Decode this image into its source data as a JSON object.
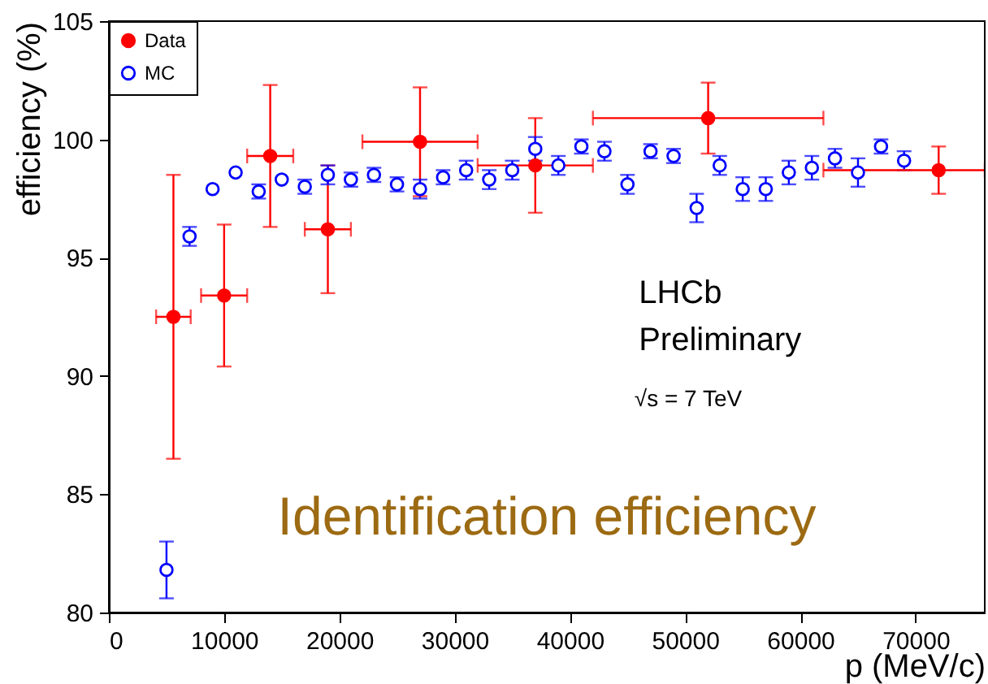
{
  "chart_data": {
    "type": "scatter",
    "xlabel": "p (MeV/c)",
    "ylabel": "efficiency (%)",
    "xlim": [
      0,
      76000
    ],
    "ylim": [
      80,
      105
    ],
    "xticks": [
      0,
      10000,
      20000,
      30000,
      40000,
      50000,
      60000,
      70000
    ],
    "yticks": [
      80,
      85,
      90,
      95,
      100,
      105
    ],
    "grid": false,
    "legend": "top left",
    "marker": "circle",
    "annotations": [
      "LHCb",
      "Preliminary",
      "√s = 7 TeV",
      "Identification efficiency"
    ],
    "series": [
      {
        "name": "Data",
        "color": "#ff0000",
        "x": [
          5600,
          10000,
          14000,
          19000,
          27000,
          37000,
          52000,
          72000
        ],
        "values": [
          92.5,
          93.4,
          99.3,
          96.2,
          99.9,
          98.9,
          100.9,
          98.7
        ],
        "errors": [
          6.0,
          3.0,
          3.0,
          2.7,
          2.3,
          2.0,
          1.5,
          1.0
        ],
        "xerrors": [
          1500,
          2000,
          2000,
          2000,
          5000,
          5000,
          10000,
          [
            62000,
            76000
          ]
        ]
      },
      {
        "name": "MC",
        "color": "#0000ff",
        "x": [
          5000,
          7000,
          9000,
          11000,
          13000,
          15000,
          17000,
          19000,
          21000,
          23000,
          25000,
          27000,
          29000,
          31000,
          33000,
          35000,
          37000,
          39000,
          41000,
          43000,
          45000,
          47000,
          49000,
          51000,
          53000,
          55000,
          57000,
          59000,
          61000,
          63000,
          65000,
          67000,
          69000
        ],
        "values": [
          81.8,
          95.9,
          97.9,
          98.6,
          97.8,
          98.3,
          98.0,
          98.5,
          98.3,
          98.5,
          98.1,
          97.9,
          98.4,
          98.7,
          98.3,
          98.7,
          99.6,
          98.9,
          99.7,
          99.5,
          98.1,
          99.5,
          99.3,
          97.1,
          98.9,
          97.9,
          97.9,
          98.6,
          98.8,
          99.2,
          98.6,
          99.7,
          99.1
        ],
        "errors": [
          1.2,
          0.4,
          null,
          null,
          0.3,
          null,
          0.3,
          0.4,
          0.3,
          0.3,
          0.3,
          0.4,
          0.3,
          0.4,
          0.4,
          0.4,
          0.5,
          0.4,
          0.3,
          0.4,
          0.4,
          0.3,
          0.3,
          0.6,
          0.4,
          0.5,
          0.5,
          0.5,
          0.5,
          0.4,
          0.6,
          0.3,
          0.4
        ]
      }
    ]
  }
}
